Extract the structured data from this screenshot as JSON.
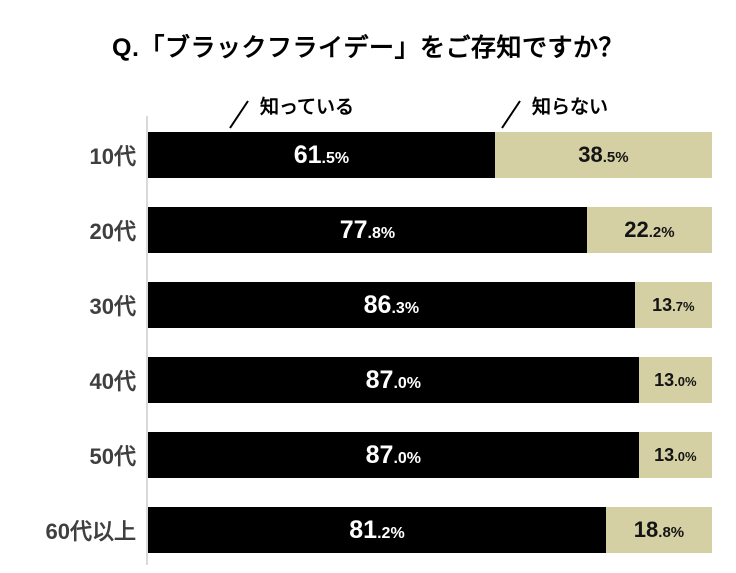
{
  "title": "Q.「ブラックフライデー」をご存知ですか？",
  "legend": {
    "known": "知っている",
    "unknown": "知らない"
  },
  "colors": {
    "known_bar": "#000000",
    "unknown_bar": "#d5d0a3",
    "category_label": "#3f3f3f",
    "axis_line": "#d9d9d9",
    "label_on_known": "#ffffff",
    "label_on_unknown": "#141414"
  },
  "chart_data": {
    "type": "bar",
    "orientation": "horizontal",
    "stacked": true,
    "unit": "%",
    "xlim": [
      0,
      100
    ],
    "grid": false,
    "legend_position": "top",
    "title": "Q.「ブラックフライデー」をご存知ですか？",
    "categories": [
      "10代",
      "20代",
      "30代",
      "40代",
      "50代",
      "60代以上"
    ],
    "series": [
      {
        "name": "知っている",
        "color": "#000000",
        "values": [
          61.5,
          77.8,
          86.3,
          87.0,
          87.0,
          81.2
        ]
      },
      {
        "name": "知らない",
        "color": "#d5d0a3",
        "values": [
          38.5,
          22.2,
          13.7,
          13.0,
          13.0,
          18.8
        ]
      }
    ],
    "value_labels": [
      [
        "61.5%",
        "38.5%"
      ],
      [
        "77.8%",
        "22.2%"
      ],
      [
        "86.3%",
        "13.7%"
      ],
      [
        "87.0%",
        "13.0%"
      ],
      [
        "87.0%",
        "13.0%"
      ],
      [
        "81.2%",
        "18.8%"
      ]
    ]
  }
}
